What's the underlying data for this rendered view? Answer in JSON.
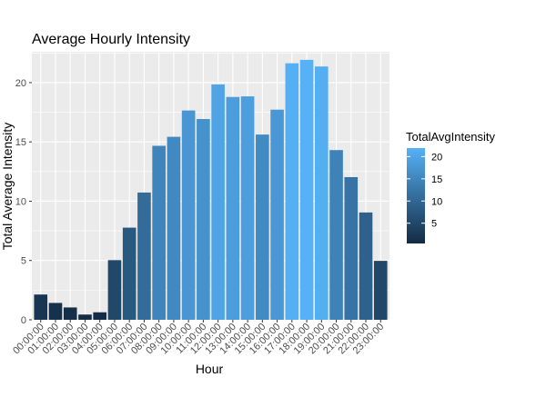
{
  "chart_data": {
    "type": "bar",
    "title": "Average Hourly Intensity",
    "xlabel": "Hour",
    "ylabel": "Total Average Intensity",
    "categories": [
      "00:00:00",
      "01:00:00",
      "02:00:00",
      "03:00:00",
      "04:00:00",
      "05:00:00",
      "06:00:00",
      "07:00:00",
      "08:00:00",
      "09:00:00",
      "10:00:00",
      "11:00:00",
      "12:00:00",
      "13:00:00",
      "14:00:00",
      "15:00:00",
      "16:00:00",
      "17:00:00",
      "18:00:00",
      "19:00:00",
      "20:00:00",
      "21:00:00",
      "22:00:00",
      "23:00:00"
    ],
    "values": [
      2.13,
      1.42,
      1.04,
      0.44,
      0.63,
      5.03,
      7.77,
      10.73,
      14.67,
      15.43,
      17.65,
      16.93,
      19.85,
      18.79,
      18.84,
      15.62,
      17.72,
      21.63,
      21.92,
      21.36,
      14.31,
      12.03,
      9.05,
      4.97
    ],
    "ylim": [
      0,
      22.6
    ],
    "yticks": [
      0,
      5,
      10,
      15,
      20
    ],
    "legend": {
      "title": "TotalAvgIntensity",
      "position": "right",
      "ticks": [
        5,
        10,
        15,
        20
      ]
    },
    "color_scale": {
      "low": "#132B43",
      "high": "#56B1F7",
      "min": 0.44,
      "max": 21.92
    },
    "grid": true,
    "panel_background": "#EBEBEB"
  }
}
